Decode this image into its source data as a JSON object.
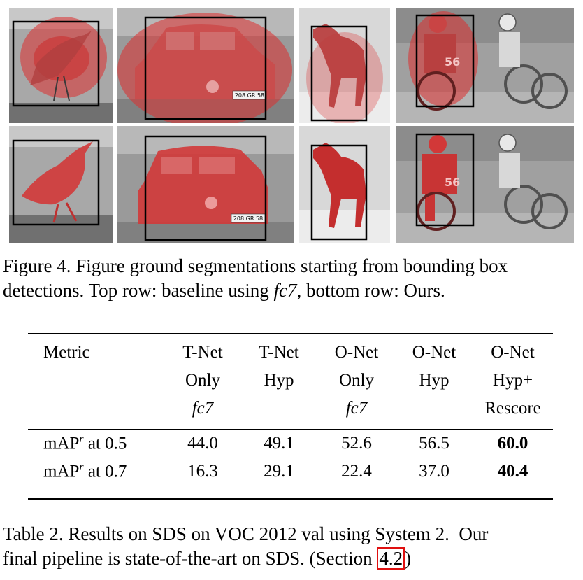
{
  "figure": {
    "caption_line1": "Figure 4. Figure ground segmentations starting from bounding box",
    "caption_line2_a": "detections. Top row: baseline using ",
    "caption_line2_it": "fc7",
    "caption_line2_b": ", bottom row: Ours.",
    "panels": [
      {
        "row": "top",
        "subject": "bird"
      },
      {
        "row": "top",
        "subject": "car"
      },
      {
        "row": "top",
        "subject": "horse"
      },
      {
        "row": "top",
        "subject": "motorcyclist"
      },
      {
        "row": "bottom",
        "subject": "bird"
      },
      {
        "row": "bottom",
        "subject": "car"
      },
      {
        "row": "bottom",
        "subject": "horse"
      },
      {
        "row": "bottom",
        "subject": "motorcyclist"
      }
    ],
    "plate_text": "208 GR 58",
    "bike_number": "56",
    "mask_color": "#dc2e2e"
  },
  "table": {
    "headers": [
      [
        "Metric",
        "",
        ""
      ],
      [
        "T-Net",
        "Only",
        "fc7"
      ],
      [
        "T-Net",
        "Hyp",
        ""
      ],
      [
        "O-Net",
        "Only",
        "fc7"
      ],
      [
        "O-Net",
        "Hyp",
        ""
      ],
      [
        "O-Net",
        "Hyp+",
        "Rescore"
      ]
    ],
    "rows": [
      {
        "metric_pre": "mAP",
        "metric_sup": "r",
        "metric_post": " at 0.5",
        "values": [
          "44.0",
          "49.1",
          "52.6",
          "56.5",
          "60.0"
        ]
      },
      {
        "metric_pre": "mAP",
        "metric_sup": "r",
        "metric_post": " at 0.7",
        "values": [
          "16.3",
          "29.1",
          "22.4",
          "37.0",
          "40.4"
        ]
      }
    ]
  },
  "table_caption": {
    "line1": "Table 2. Results on SDS on VOC 2012 val using System 2.  Our",
    "line2_a": "final pipeline is state-of-the-art on SDS. (Section ",
    "line2_ref": "4.2",
    "line2_b": ")"
  }
}
